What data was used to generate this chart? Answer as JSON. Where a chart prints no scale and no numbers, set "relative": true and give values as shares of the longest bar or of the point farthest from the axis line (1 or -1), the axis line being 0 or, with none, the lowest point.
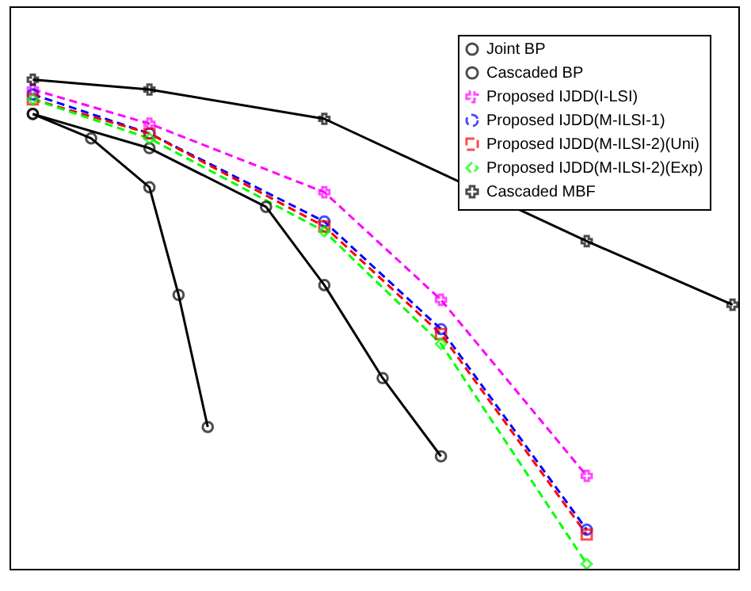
{
  "chart_data": {
    "type": "line",
    "relative": true,
    "tick_labels": false,
    "legend": "top right",
    "categories": [
      null,
      null,
      null,
      null,
      null,
      null,
      null,
      null,
      null,
      null,
      null,
      null,
      null,
      null,
      null,
      null,
      null,
      null,
      null,
      null,
      null,
      null,
      null,
      null,
      null
    ],
    "series": [
      {
        "name": "Joint BP",
        "color": "#000000",
        "marker": "circle",
        "line_style": "solid",
        "values": [
          0.93,
          null,
          0.88,
          null,
          0.78,
          0.56,
          0.29,
          null,
          null,
          null,
          null,
          null,
          null,
          null,
          null,
          null,
          null,
          null,
          null,
          null,
          null,
          null,
          null,
          null,
          null
        ]
      },
      {
        "name": "Cascaded BP",
        "color": "#000000",
        "marker": "circle",
        "line_style": "solid",
        "values": [
          0.93,
          null,
          null,
          null,
          0.86,
          null,
          null,
          null,
          0.74,
          null,
          0.58,
          null,
          0.39,
          null,
          0.23,
          null,
          null,
          null,
          null,
          null,
          null,
          null,
          null,
          null,
          null
        ]
      },
      {
        "name": "Proposed IJDD(I-LSI)",
        "color": "#ff00ff",
        "marker": "cross",
        "line_style": "dashed",
        "values": [
          0.98,
          null,
          null,
          null,
          0.91,
          null,
          null,
          null,
          null,
          null,
          0.77,
          null,
          null,
          null,
          0.55,
          null,
          null,
          null,
          null,
          0.19,
          null,
          null,
          null,
          null,
          null
        ]
      },
      {
        "name": "Proposed IJDD(M-ILSI-1)",
        "color": "#0000ff",
        "marker": "circle",
        "line_style": "dashed",
        "values": [
          0.97,
          null,
          null,
          null,
          0.89,
          null,
          null,
          null,
          null,
          null,
          0.71,
          null,
          null,
          null,
          0.49,
          null,
          null,
          null,
          null,
          0.08,
          null,
          null,
          null,
          null,
          null
        ]
      },
      {
        "name": "Proposed IJDD(M-ILSI-2)(Uni)",
        "color": "#ff0000",
        "marker": "square",
        "line_style": "dashed",
        "values": [
          0.96,
          null,
          null,
          null,
          0.89,
          null,
          null,
          null,
          null,
          null,
          0.7,
          null,
          null,
          null,
          0.48,
          null,
          null,
          null,
          null,
          0.07,
          null,
          null,
          null,
          null,
          null
        ]
      },
      {
        "name": "Proposed IJDD(M-ILSI-2)(Exp)",
        "color": "#00ff00",
        "marker": "diamond",
        "line_style": "dashed",
        "values": [
          0.96,
          null,
          null,
          null,
          0.88,
          null,
          null,
          null,
          null,
          null,
          0.69,
          null,
          null,
          null,
          0.46,
          null,
          null,
          null,
          null,
          0.01,
          null,
          null,
          null,
          null,
          null
        ]
      },
      {
        "name": "Cascaded MBF",
        "color": "#000000",
        "marker": "cross",
        "line_style": "solid",
        "values": [
          1,
          null,
          null,
          null,
          0.98,
          null,
          null,
          null,
          null,
          null,
          0.92,
          null,
          null,
          null,
          null,
          null,
          null,
          null,
          null,
          0.67,
          null,
          null,
          null,
          null,
          0.54
        ]
      }
    ]
  }
}
